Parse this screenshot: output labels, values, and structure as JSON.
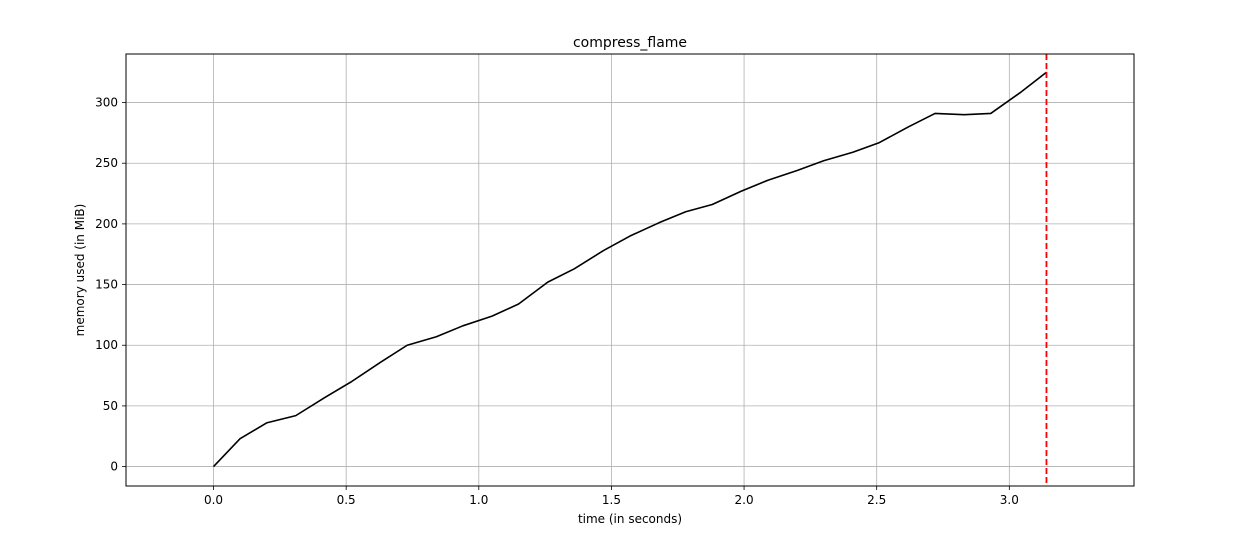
{
  "chart_data": {
    "type": "line",
    "title": "compress_flame",
    "xlabel": "time (in seconds)",
    "ylabel": "memory used (in MiB)",
    "xlim": [
      -0.33,
      3.47
    ],
    "ylim": [
      -16,
      340
    ],
    "x_ticks": [
      0.0,
      0.5,
      1.0,
      1.5,
      2.0,
      2.5,
      3.0
    ],
    "x_tick_labels": [
      "0.0",
      "0.5",
      "1.0",
      "1.5",
      "2.0",
      "2.5",
      "3.0"
    ],
    "y_ticks": [
      0,
      50,
      100,
      150,
      200,
      250,
      300
    ],
    "y_tick_labels": [
      "0",
      "50",
      "100",
      "150",
      "200",
      "250",
      "300"
    ],
    "grid": true,
    "series": [
      {
        "color": "#000000",
        "x": [
          0.0,
          0.1,
          0.2,
          0.31,
          0.42,
          0.52,
          0.63,
          0.73,
          0.84,
          0.94,
          1.05,
          1.15,
          1.26,
          1.36,
          1.47,
          1.57,
          1.68,
          1.78,
          1.88,
          1.99,
          2.09,
          2.2,
          2.3,
          2.41,
          2.51,
          2.62,
          2.72,
          2.83,
          2.93,
          3.04,
          3.14
        ],
        "y": [
          0,
          23,
          36,
          42,
          57,
          70,
          86,
          100,
          107,
          116,
          124,
          134,
          152,
          163,
          178,
          190,
          201,
          210,
          216,
          227,
          236,
          244,
          252,
          259,
          267,
          280,
          291,
          290,
          291,
          308,
          325
        ]
      }
    ],
    "vline": {
      "x": 3.14,
      "color": "#ff0000",
      "style": "dashed"
    }
  }
}
